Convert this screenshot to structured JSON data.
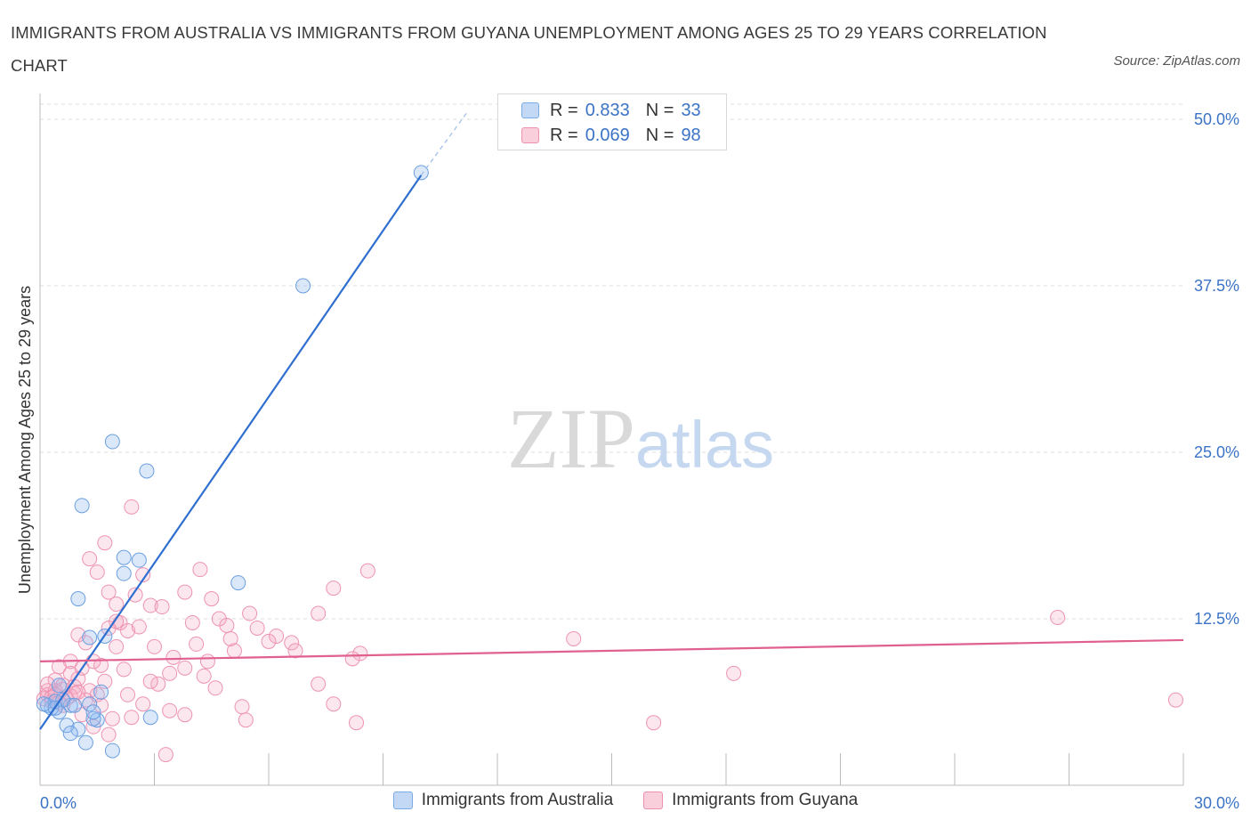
{
  "chart_data": {
    "type": "scatter",
    "title": "IMMIGRANTS FROM AUSTRALIA VS IMMIGRANTS FROM GUYANA UNEMPLOYMENT AMONG AGES 25 TO 29 YEARS CORRELATION CHART",
    "source": "Source: ZipAtlas.com",
    "xlabel": "",
    "ylabel": "Unemployment Among Ages 25 to 29 years",
    "xlim": [
      0,
      30
    ],
    "ylim": [
      0,
      50
    ],
    "x_tick_labels": [
      "0.0%",
      "30.0%"
    ],
    "y_ticks": [
      12.5,
      25.0,
      37.5,
      50.0
    ],
    "y_tick_labels": [
      "12.5%",
      "25.0%",
      "37.5%",
      "50.0%"
    ],
    "watermark": "ZIPatlas",
    "legend": {
      "r_label": "R =",
      "n_label": "N =",
      "entries": [
        {
          "name": "Immigrants from Australia",
          "r": "0.833",
          "n": "33",
          "color": "#7aaae8"
        },
        {
          "name": "Immigrants from Guyana",
          "r": "0.069",
          "n": "98",
          "color": "#f090b0"
        }
      ]
    },
    "series": [
      {
        "name": "Immigrants from Australia",
        "color": "#7aaae8",
        "line_color": "#2f6fd0",
        "trend": {
          "x1": 0,
          "y1": 4.2,
          "x2": 10.0,
          "y2": 45.8,
          "dash_to_x": 11.2,
          "dash_to_y": 50.5
        },
        "points": [
          [
            10.0,
            46.0
          ],
          [
            6.9,
            37.5
          ],
          [
            1.9,
            25.8
          ],
          [
            2.8,
            23.6
          ],
          [
            1.1,
            21.0
          ],
          [
            2.2,
            17.1
          ],
          [
            2.6,
            16.9
          ],
          [
            2.2,
            15.9
          ],
          [
            5.2,
            15.2
          ],
          [
            1.0,
            14.0
          ],
          [
            0.5,
            5.5
          ],
          [
            0.8,
            6.0
          ],
          [
            0.3,
            5.8
          ],
          [
            0.2,
            6.0
          ],
          [
            0.4,
            6.3
          ],
          [
            0.6,
            6.4
          ],
          [
            0.9,
            6.0
          ],
          [
            0.5,
            7.5
          ],
          [
            1.3,
            11.1
          ],
          [
            1.7,
            11.2
          ],
          [
            1.6,
            7.0
          ],
          [
            1.3,
            6.1
          ],
          [
            0.1,
            6.1
          ],
          [
            1.5,
            4.9
          ],
          [
            1.0,
            4.2
          ],
          [
            1.4,
            5.0
          ],
          [
            0.7,
            4.5
          ],
          [
            1.2,
            3.2
          ],
          [
            0.8,
            3.9
          ],
          [
            1.9,
            2.6
          ],
          [
            2.9,
            5.1
          ],
          [
            0.4,
            5.8
          ],
          [
            1.4,
            5.5
          ]
        ]
      },
      {
        "name": "Immigrants from Guyana",
        "color": "#f090b0",
        "line_color": "#e06090",
        "trend": {
          "x1": 0,
          "y1": 9.3,
          "x2": 30,
          "y2": 10.9
        },
        "points": [
          [
            2.4,
            20.9
          ],
          [
            1.7,
            18.2
          ],
          [
            1.3,
            17.0
          ],
          [
            1.5,
            16.0
          ],
          [
            2.7,
            15.8
          ],
          [
            4.2,
            16.2
          ],
          [
            8.6,
            16.1
          ],
          [
            1.8,
            14.5
          ],
          [
            2.5,
            14.3
          ],
          [
            3.8,
            14.5
          ],
          [
            4.5,
            14.0
          ],
          [
            7.7,
            14.8
          ],
          [
            2.0,
            13.6
          ],
          [
            2.9,
            13.5
          ],
          [
            4.7,
            12.5
          ],
          [
            5.5,
            12.9
          ],
          [
            7.3,
            12.9
          ],
          [
            2.1,
            12.2
          ],
          [
            2.0,
            12.3
          ],
          [
            1.8,
            11.8
          ],
          [
            4.0,
            12.2
          ],
          [
            4.9,
            12.0
          ],
          [
            5.7,
            11.8
          ],
          [
            6.2,
            11.2
          ],
          [
            1.0,
            11.3
          ],
          [
            1.2,
            10.7
          ],
          [
            2.3,
            11.6
          ],
          [
            3.0,
            10.4
          ],
          [
            4.1,
            10.6
          ],
          [
            5.1,
            10.1
          ],
          [
            6.0,
            10.8
          ],
          [
            6.6,
            10.7
          ],
          [
            8.4,
            9.9
          ],
          [
            0.8,
            9.3
          ],
          [
            1.6,
            9.0
          ],
          [
            3.5,
            9.6
          ],
          [
            4.4,
            9.3
          ],
          [
            6.7,
            10.1
          ],
          [
            8.2,
            9.5
          ],
          [
            0.5,
            8.9
          ],
          [
            1.1,
            8.8
          ],
          [
            2.2,
            8.7
          ],
          [
            3.4,
            8.4
          ],
          [
            3.8,
            8.8
          ],
          [
            1.0,
            8.0
          ],
          [
            1.7,
            7.8
          ],
          [
            0.4,
            7.9
          ],
          [
            0.6,
            7.5
          ],
          [
            0.2,
            7.1
          ],
          [
            0.9,
            7.4
          ],
          [
            1.3,
            7.1
          ],
          [
            2.3,
            6.8
          ],
          [
            3.1,
            7.6
          ],
          [
            4.6,
            7.3
          ],
          [
            7.3,
            7.6
          ],
          [
            0.1,
            6.5
          ],
          [
            0.3,
            6.3
          ],
          [
            0.8,
            6.7
          ],
          [
            1.5,
            6.8
          ],
          [
            0.6,
            6.0
          ],
          [
            2.7,
            6.1
          ],
          [
            3.4,
            5.6
          ],
          [
            5.3,
            5.9
          ],
          [
            7.7,
            6.1
          ],
          [
            1.1,
            5.3
          ],
          [
            1.9,
            5.0
          ],
          [
            2.4,
            5.1
          ],
          [
            3.8,
            5.3
          ],
          [
            5.4,
            4.9
          ],
          [
            8.3,
            4.7
          ],
          [
            1.4,
            4.4
          ],
          [
            1.8,
            3.8
          ],
          [
            3.3,
            2.3
          ],
          [
            14.0,
            11.0
          ],
          [
            16.1,
            4.7
          ],
          [
            18.2,
            8.4
          ],
          [
            26.7,
            12.6
          ],
          [
            29.8,
            6.4
          ],
          [
            0.2,
            6.8
          ],
          [
            0.4,
            7.1
          ],
          [
            0.7,
            6.5
          ],
          [
            0.5,
            6.2
          ],
          [
            0.3,
            6.6
          ],
          [
            0.9,
            6.9
          ],
          [
            1.2,
            6.4
          ],
          [
            0.6,
            7.2
          ],
          [
            0.8,
            8.4
          ],
          [
            1.4,
            9.3
          ],
          [
            2.0,
            10.4
          ],
          [
            2.6,
            11.9
          ],
          [
            3.2,
            13.4
          ],
          [
            4.3,
            8.2
          ],
          [
            2.9,
            7.8
          ],
          [
            1.6,
            6.0
          ],
          [
            5.0,
            11.0
          ],
          [
            0.2,
            7.6
          ],
          [
            1.0,
            7.0
          ],
          [
            0.4,
            6.8
          ]
        ]
      }
    ]
  }
}
